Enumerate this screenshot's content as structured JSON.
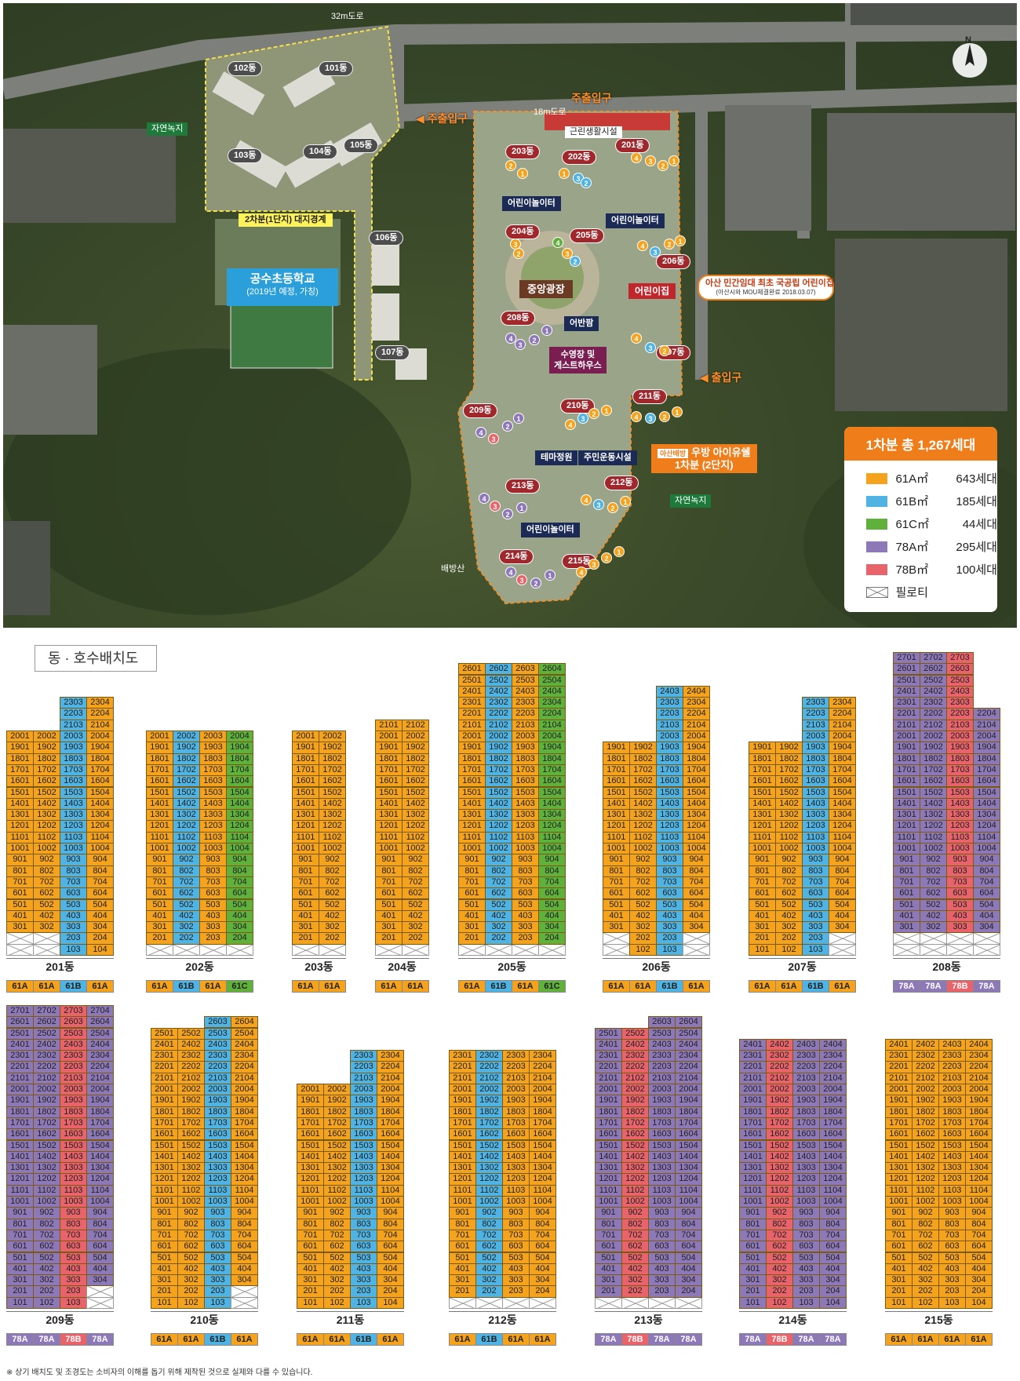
{
  "map": {
    "roads": {
      "r32": "32m도로",
      "r18": "18m도로"
    },
    "north": "N",
    "labels": {
      "main_entrance_top": "주출입구",
      "main_entrance_left": "◀ 주출입구",
      "exit_right": "◀ 출입구",
      "commercial": "근린생활시설",
      "boundary": "2차분(1단지) 대지경계",
      "school_name": "공수초등학교",
      "school_note": "(2019년 예정, 가칭)",
      "natural_green_left": "자연녹지",
      "natural_green_right": "자연녹지",
      "baebang_mtn": "배방산",
      "central_plaza": "중앙광장",
      "daycare": "어린이집",
      "eobanjeong": "어반팜",
      "pool": "수영장 및\n게스트하우스",
      "theme_garden": "테마정원",
      "sports": "주민운동시설",
      "playground1": "어린이놀이터",
      "playground2": "어린이놀이터",
      "playground3": "어린이놀이터",
      "callout_title": "아산 민간임대 최초 국공립 어린이집",
      "callout_sub": "(아산시와 MOU체결완료 2018.03.07)",
      "project_tag": "아산배방",
      "project_name": "우방 아이유쉘",
      "project_phase": "1차분 (2단지)"
    },
    "phase1_dongs": [
      "101동",
      "102동",
      "103동",
      "104동",
      "105동",
      "106동",
      "107동"
    ],
    "phase2_dongs": [
      "201동",
      "202동",
      "203동",
      "204동",
      "205동",
      "206동",
      "207동",
      "208동",
      "209동",
      "210동",
      "211동",
      "212동",
      "213동",
      "214동",
      "215동"
    ]
  },
  "legend": {
    "title": "1차분 총 1,267세대",
    "items": [
      {
        "name": "61A㎡",
        "count": "643세대",
        "color": "#f5a21c"
      },
      {
        "name": "61B㎡",
        "count": "185세대",
        "color": "#4fb3e3"
      },
      {
        "name": "61C㎡",
        "count": "44세대",
        "color": "#5fb13c"
      },
      {
        "name": "78A㎡",
        "count": "295세대",
        "color": "#8e79b8"
      },
      {
        "name": "78B㎡",
        "count": "100세대",
        "color": "#e8636a"
      },
      {
        "name": "필로티",
        "count": "",
        "color": "pilotis"
      }
    ]
  },
  "section_title": "동 · 호수배치도",
  "footnote": "※ 상기 배치도 및 조경도는 소비자의 이해를 돕기 위해 제작된 것으로 실제와 다를 수 있습니다.",
  "type_colors": {
    "61A": "#f5a21c",
    "61B": "#4fb3e3",
    "61C": "#5fb13c",
    "78A": "#8e79b8",
    "78B": "#e8636a"
  },
  "buildings": [
    {
      "name": "201동",
      "types": [
        "61A",
        "61A",
        "61B",
        "61A"
      ],
      "top": [
        20,
        20,
        23,
        23
      ],
      "bottom": [
        3,
        3,
        1,
        1
      ],
      "pilotis": [
        [
          2,
          1
        ],
        [
          2,
          2
        ]
      ]
    },
    {
      "name": "202동",
      "types": [
        "61A",
        "61B",
        "61A",
        "61C"
      ],
      "top": [
        20,
        20,
        20,
        20
      ],
      "bottom": [
        2,
        2,
        2,
        2
      ],
      "pilotis": []
    },
    {
      "name": "203동",
      "types": [
        "61A",
        "61A"
      ],
      "top": [
        20,
        20
      ],
      "bottom": [
        2,
        2
      ],
      "pilotis": []
    },
    {
      "name": "204동",
      "types": [
        "61A",
        "61A"
      ],
      "top": [
        21,
        21
      ],
      "bottom": [
        2,
        2
      ],
      "pilotis": []
    },
    {
      "name": "205동",
      "types": [
        "61A",
        "61B",
        "61A",
        "61C"
      ],
      "top": [
        26,
        26,
        26,
        26
      ],
      "bottom": [
        2,
        2,
        2,
        2
      ],
      "pilotis": []
    },
    {
      "name": "206동",
      "types": [
        "61A",
        "61A",
        "61B",
        "61A"
      ],
      "top": [
        19,
        19,
        24,
        24
      ],
      "bottom": [
        3,
        1,
        1,
        3
      ],
      "pilotis": [
        [
          2,
          1
        ],
        [
          2,
          4
        ]
      ]
    },
    {
      "name": "207동",
      "types": [
        "61A",
        "61A",
        "61B",
        "61A"
      ],
      "top": [
        19,
        19,
        23,
        23
      ],
      "bottom": [
        1,
        1,
        1,
        3
      ],
      "pilotis": [
        [
          2,
          4
        ]
      ]
    },
    {
      "name": "208동",
      "types": [
        "78A",
        "78A",
        "78B",
        "78A"
      ],
      "top": [
        27,
        27,
        27,
        22
      ],
      "bottom": [
        3,
        3,
        3,
        3
      ],
      "pilotis": []
    },
    {
      "name": "209동",
      "types": [
        "78A",
        "78A",
        "78B",
        "78A"
      ],
      "top": [
        27,
        27,
        27,
        27
      ],
      "bottom": [
        1,
        1,
        1,
        3
      ],
      "pilotis": [
        [
          1,
          4
        ],
        [
          2,
          4
        ]
      ]
    },
    {
      "name": "210동",
      "types": [
        "61A",
        "61A",
        "61B",
        "61A"
      ],
      "top": [
        25,
        25,
        26,
        26
      ],
      "bottom": [
        1,
        1,
        1,
        3
      ],
      "pilotis": [
        [
          1,
          4
        ],
        [
          2,
          4
        ]
      ]
    },
    {
      "name": "211동",
      "types": [
        "61A",
        "61A",
        "61B",
        "61A"
      ],
      "top": [
        20,
        20,
        23,
        23
      ],
      "bottom": [
        1,
        1,
        1,
        1
      ],
      "pilotis": []
    },
    {
      "name": "212동",
      "types": [
        "61A",
        "61B",
        "61A",
        "61A"
      ],
      "top": [
        23,
        23,
        23,
        23
      ],
      "bottom": [
        2,
        2,
        2,
        2
      ],
      "pilotis": []
    },
    {
      "name": "213동",
      "types": [
        "78A",
        "78B",
        "78A",
        "78A"
      ],
      "top": [
        25,
        25,
        26,
        26
      ],
      "bottom": [
        2,
        2,
        2,
        2
      ],
      "pilotis": []
    },
    {
      "name": "214동",
      "types": [
        "78A",
        "78B",
        "78A",
        "78A"
      ],
      "top": [
        24,
        24,
        24,
        24
      ],
      "bottom": [
        1,
        1,
        1,
        1
      ],
      "pilotis": []
    },
    {
      "name": "215동",
      "types": [
        "61A",
        "61A",
        "61A",
        "61A"
      ],
      "top": [
        24,
        24,
        24,
        24
      ],
      "bottom": [
        1,
        1,
        1,
        1
      ],
      "pilotis": []
    }
  ]
}
